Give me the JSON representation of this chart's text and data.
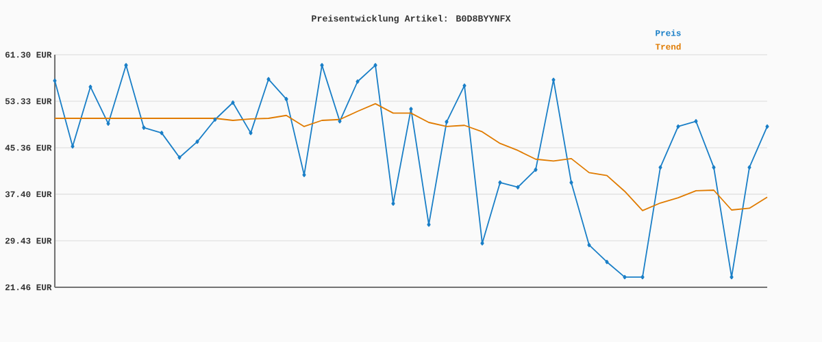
{
  "chart_data": {
    "type": "line",
    "title": "Preisentwicklung Artikel: B0D8BYYNFX",
    "categories": [
      null,
      null,
      null,
      null,
      null,
      null,
      null,
      null,
      null,
      null,
      null,
      null,
      null,
      null,
      null,
      null,
      null,
      null,
      null,
      null,
      null,
      null,
      null,
      null,
      null,
      null,
      null,
      null,
      null,
      null,
      null,
      null,
      null,
      null,
      null,
      null,
      null,
      null,
      null,
      null,
      null
    ],
    "series": [
      {
        "name": "Preis",
        "color": "#1a7fc7",
        "marker": "diamond",
        "values": [
          56.85,
          45.6,
          55.8,
          49.5,
          59.5,
          48.8,
          47.9,
          43.7,
          46.4,
          50.2,
          53.1,
          47.9,
          57.1,
          53.7,
          40.7,
          59.5,
          49.9,
          56.7,
          59.5,
          35.8,
          52.0,
          32.2,
          49.8,
          56.0,
          29.0,
          39.4,
          38.6,
          41.6,
          57.0,
          39.4,
          28.7,
          25.8,
          23.2,
          23.2,
          42.0,
          49.0,
          49.9,
          42.0,
          23.2,
          42.0,
          49.0
        ]
      },
      {
        "name": "Trend",
        "color": "#e07b00",
        "marker": "none",
        "values": [
          50.4,
          50.4,
          50.4,
          50.4,
          50.4,
          50.4,
          50.4,
          50.4,
          50.4,
          50.4,
          50.05,
          50.3,
          50.4,
          50.9,
          49.0,
          50.05,
          50.2,
          51.6,
          52.9,
          51.3,
          51.3,
          49.7,
          49.0,
          49.2,
          48.1,
          46.1,
          44.9,
          43.4,
          43.1,
          43.5,
          41.1,
          40.6,
          37.9,
          34.6,
          35.9,
          36.8,
          38.0,
          38.1,
          34.7,
          35.0,
          36.9
        ]
      }
    ],
    "ylim": [
      21.46,
      61.3
    ],
    "yticks": [
      {
        "value": 21.46,
        "label": "21.46 EUR"
      },
      {
        "value": 29.43,
        "label": "29.43 EUR"
      },
      {
        "value": 37.4,
        "label": "37.40 EUR"
      },
      {
        "value": 45.36,
        "label": "45.36 EUR"
      },
      {
        "value": 53.33,
        "label": "53.33 EUR"
      },
      {
        "value": 61.3,
        "label": "61.30 EUR"
      }
    ],
    "grid": "y",
    "legend": "top right",
    "tick_labels": "y"
  }
}
